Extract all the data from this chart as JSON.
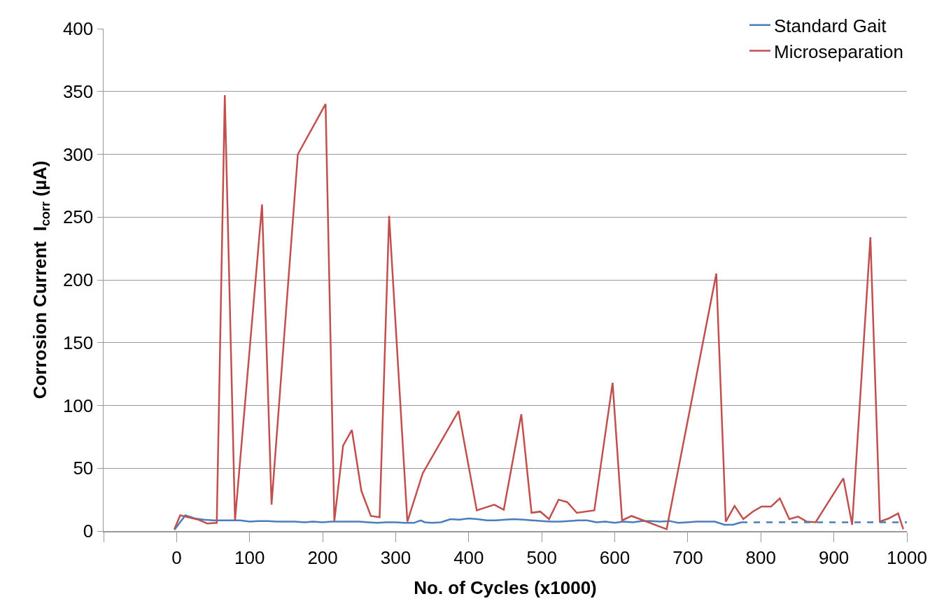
{
  "chart_data": {
    "type": "line",
    "xlabel": "No. of Cycles (x1000)",
    "ylabel": "Corrosion Current  I$_{corr}$ (µA)",
    "xlim": [
      -100,
      1000
    ],
    "xticks": [
      {
        "value": -100,
        "label": null
      },
      0,
      100,
      200,
      300,
      400,
      500,
      600,
      700,
      800,
      900,
      1000
    ],
    "ylim": [
      0,
      400
    ],
    "yticks": [
      0,
      50,
      100,
      150,
      200,
      250,
      300,
      350,
      400
    ],
    "grid": "y",
    "legend": "top right",
    "marker": "none",
    "series": [
      {
        "name": "Standard Gait",
        "color": "#4a7ebb",
        "line_style": "solid",
        "x": [
          -3,
          12,
          25,
          37,
          50,
          62,
          75,
          87,
          100,
          112,
          125,
          137,
          150,
          162,
          175,
          187,
          200,
          212,
          225,
          237,
          250,
          262,
          275,
          287,
          300,
          312,
          325,
          334,
          340,
          350,
          362,
          375,
          387,
          400,
          412,
          425,
          437,
          450,
          462,
          475,
          487,
          500,
          512,
          525,
          537,
          550,
          562,
          575,
          587,
          600,
          612,
          625,
          637,
          650,
          662,
          675,
          687,
          700,
          712,
          725,
          737,
          750,
          762,
          773
        ],
        "values": [
          1,
          12.5,
          10,
          9,
          8.5,
          8.5,
          8.5,
          8.5,
          7.5,
          8,
          8,
          7.5,
          7.5,
          7.5,
          7,
          7.5,
          7,
          7.5,
          7.5,
          7.5,
          7.5,
          7,
          6.5,
          7,
          7,
          6.5,
          6.5,
          8.5,
          7,
          6.5,
          7,
          9.5,
          9,
          10,
          9.5,
          8.5,
          8.5,
          9,
          9.5,
          9,
          8.5,
          8,
          7.5,
          7.5,
          8,
          8.5,
          8.5,
          7,
          7.5,
          6.5,
          7.5,
          7,
          8,
          8,
          7.5,
          8,
          6.5,
          7,
          7.5,
          7.5,
          7.5,
          5,
          5,
          7
        ]
      },
      {
        "name": "Microseparation",
        "color": "#c0504d",
        "line_style": "solid",
        "x": [
          -3,
          5,
          30,
          42,
          55,
          66,
          80,
          117,
          130,
          166,
          204,
          216,
          228,
          240,
          253,
          266,
          278,
          291,
          316,
          337,
          386,
          411,
          435,
          448,
          472,
          486,
          498,
          510,
          523,
          535,
          548,
          572,
          597,
          610,
          623,
          671,
          739,
          752,
          764,
          776,
          789,
          801,
          814,
          826,
          839,
          851,
          863,
          875,
          913,
          925,
          950,
          963,
          975,
          988,
          995
        ],
        "values": [
          1.5,
          12.5,
          9,
          6,
          6.5,
          347,
          8.5,
          260,
          21,
          300,
          340,
          8,
          68,
          80.5,
          32,
          12,
          11,
          251,
          7.5,
          46,
          95.5,
          16.5,
          21,
          17,
          93,
          14.5,
          15.5,
          9.5,
          25,
          23,
          14.5,
          16.5,
          118,
          8.5,
          12,
          1.5,
          205,
          7.5,
          20,
          9.5,
          15.5,
          19.5,
          19.5,
          26,
          9.5,
          11.5,
          7.5,
          7,
          42,
          5,
          234,
          7.5,
          10,
          14,
          1.5
        ]
      },
      {
        "color": "#4a7ebb",
        "line_style": "dashed",
        "x": [
          773,
          1000
        ],
        "values": [
          7,
          7
        ]
      }
    ]
  }
}
